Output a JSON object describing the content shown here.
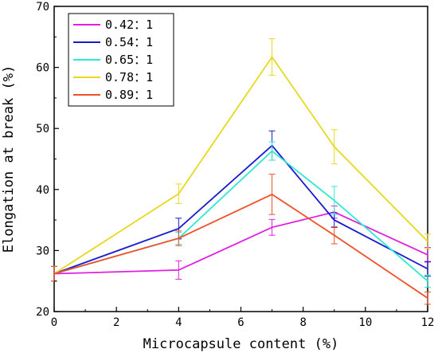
{
  "chart_data": {
    "type": "line",
    "xlabel": "Microcapsule content (%)",
    "ylabel": "Elongation at break (%)",
    "xlim": [
      0,
      12
    ],
    "ylim": [
      20,
      70
    ],
    "xticks": [
      0,
      2,
      4,
      6,
      8,
      10,
      12
    ],
    "yticks": [
      20,
      30,
      40,
      50,
      60,
      70
    ],
    "x": [
      0,
      4,
      7,
      9,
      12
    ],
    "grid": false,
    "legend_position": "top-left",
    "series": [
      {
        "name": "0.42：1",
        "color": "#e020e0",
        "values": [
          26.2,
          26.8,
          33.8,
          36.3,
          29.3
        ],
        "errors": [
          1.2,
          1.5,
          1.3,
          1.0,
          1.2
        ]
      },
      {
        "name": "0.54：1",
        "color": "#1a1ad0",
        "values": [
          26.2,
          33.6,
          47.2,
          35.0,
          27.0
        ],
        "errors": [
          1.2,
          1.7,
          2.4,
          1.2,
          1.2
        ]
      },
      {
        "name": "0.65：1",
        "color": "#30e8d0",
        "values": [
          26.2,
          32.0,
          46.3,
          38.2,
          25.0
        ],
        "errors": [
          1.2,
          1.0,
          1.5,
          2.3,
          1.0
        ]
      },
      {
        "name": "0.78：1",
        "color": "#e8d820",
        "values": [
          26.2,
          39.3,
          61.7,
          47.0,
          31.5
        ],
        "errors": [
          1.2,
          1.6,
          3.0,
          2.8,
          1.2
        ]
      },
      {
        "name": "0.89：1",
        "color": "#f05028",
        "values": [
          26.2,
          32.0,
          39.2,
          32.5,
          22.2
        ],
        "errors": [
          1.2,
          1.2,
          3.3,
          1.4,
          1.0
        ]
      }
    ]
  }
}
